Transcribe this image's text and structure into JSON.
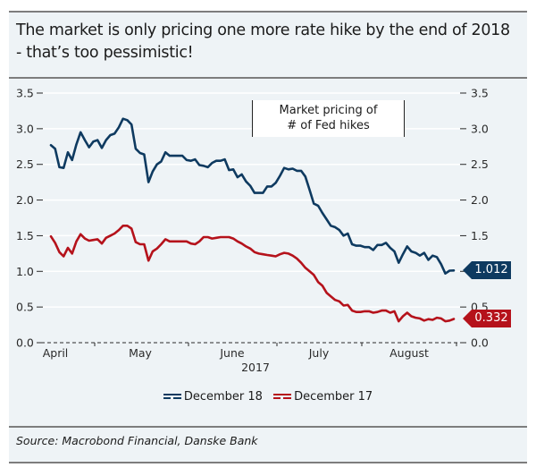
{
  "title": "The market is only pricing one more rate hike by the end of 2018 - that’s too pessimistic!",
  "source": "Source: Macrobond Financial, Danske Bank",
  "annotation": {
    "line1": "Market pricing of",
    "line2": "# of Fed hikes"
  },
  "chart_data": {
    "type": "line",
    "title": "The market is only pricing one more rate hike by the end of 2018 - that’s too pessimistic!",
    "xlabel": "2017",
    "ylabel": "",
    "ylim": [
      0,
      3.5
    ],
    "yticks": [
      "0.0",
      "0.5",
      "1.0",
      "1.5",
      "2.0",
      "2.5",
      "3.0",
      "3.5"
    ],
    "y2ticks": [
      "0.0",
      "0.5",
      "1.0",
      "1.5",
      "2.0",
      "2.5",
      "3.0",
      "3.5"
    ],
    "xticks": [
      "April",
      "May",
      "June",
      "July",
      "August"
    ],
    "xaxis_year": "2017",
    "grid": true,
    "legend_position": "bottom",
    "x_range": [
      "2017-04-03",
      "2017-08-25"
    ],
    "series": [
      {
        "name": "December 18",
        "color": "#0e3a60",
        "end_value": "1.012",
        "values": [
          2.77,
          2.72,
          2.46,
          2.45,
          2.67,
          2.56,
          2.78,
          2.95,
          2.84,
          2.74,
          2.82,
          2.84,
          2.73,
          2.84,
          2.91,
          2.93,
          3.02,
          3.14,
          3.12,
          3.06,
          2.72,
          2.66,
          2.64,
          2.25,
          2.4,
          2.5,
          2.54,
          2.67,
          2.62,
          2.62,
          2.62,
          2.62,
          2.56,
          2.55,
          2.57,
          2.49,
          2.48,
          2.46,
          2.52,
          2.55,
          2.55,
          2.57,
          2.42,
          2.43,
          2.32,
          2.36,
          2.26,
          2.2,
          2.1,
          2.1,
          2.1,
          2.19,
          2.19,
          2.24,
          2.34,
          2.45,
          2.43,
          2.44,
          2.41,
          2.41,
          2.33,
          2.14,
          1.95,
          1.92,
          1.82,
          1.73,
          1.64,
          1.62,
          1.58,
          1.5,
          1.53,
          1.38,
          1.36,
          1.36,
          1.34,
          1.34,
          1.3,
          1.37,
          1.37,
          1.4,
          1.33,
          1.28,
          1.12,
          1.24,
          1.35,
          1.28,
          1.26,
          1.22,
          1.26,
          1.16,
          1.22,
          1.2,
          1.1,
          0.97,
          1.01,
          1.012
        ]
      },
      {
        "name": "December 17",
        "color": "#b5121b",
        "end_value": "0.332",
        "values": [
          1.49,
          1.4,
          1.27,
          1.21,
          1.33,
          1.25,
          1.42,
          1.52,
          1.46,
          1.43,
          1.44,
          1.45,
          1.39,
          1.47,
          1.5,
          1.53,
          1.58,
          1.64,
          1.64,
          1.6,
          1.41,
          1.38,
          1.38,
          1.15,
          1.28,
          1.32,
          1.38,
          1.45,
          1.42,
          1.42,
          1.42,
          1.42,
          1.42,
          1.39,
          1.38,
          1.42,
          1.48,
          1.48,
          1.46,
          1.47,
          1.48,
          1.48,
          1.48,
          1.46,
          1.42,
          1.39,
          1.35,
          1.32,
          1.27,
          1.25,
          1.24,
          1.23,
          1.22,
          1.21,
          1.24,
          1.26,
          1.25,
          1.22,
          1.18,
          1.12,
          1.05,
          1.0,
          0.95,
          0.85,
          0.8,
          0.7,
          0.65,
          0.6,
          0.58,
          0.52,
          0.53,
          0.45,
          0.43,
          0.43,
          0.44,
          0.44,
          0.42,
          0.43,
          0.45,
          0.45,
          0.42,
          0.44,
          0.3,
          0.37,
          0.42,
          0.37,
          0.35,
          0.34,
          0.31,
          0.33,
          0.32,
          0.35,
          0.34,
          0.3,
          0.31,
          0.332
        ]
      }
    ]
  }
}
